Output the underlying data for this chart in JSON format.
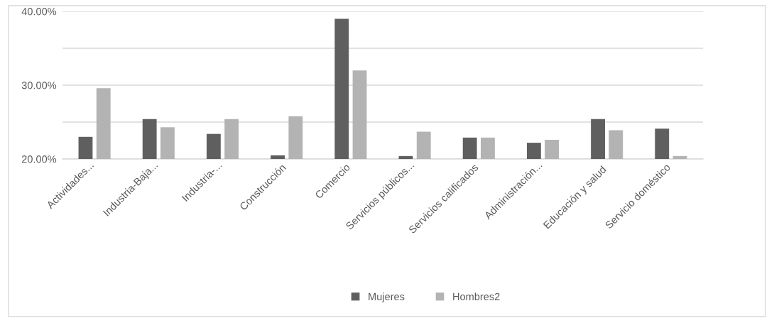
{
  "chart_data": {
    "type": "bar",
    "categories": [
      "Actividades...",
      "Industria-Baja...",
      "Industria-...",
      "Construcción",
      "Comercio",
      "Servicios públicos...",
      "Servicios calificados",
      "Administración...",
      "Educación y salud",
      "Servicio doméstico"
    ],
    "series": [
      {
        "name": "Mujeres",
        "color": "#5f5f5f",
        "values": [
          23.0,
          25.4,
          23.4,
          20.5,
          39.0,
          20.4,
          22.9,
          22.2,
          25.4,
          24.1
        ]
      },
      {
        "name": "Hombres2",
        "color": "#b3b3b3",
        "values": [
          29.6,
          24.3,
          25.4,
          25.8,
          32.0,
          23.7,
          22.9,
          22.6,
          23.9,
          20.4
        ]
      }
    ],
    "ylim": [
      20,
      40
    ],
    "yticks": [
      {
        "value": 20,
        "label": "20.00%"
      },
      {
        "value": 25,
        "label": null
      },
      {
        "value": 30,
        "label": "30.00%"
      },
      {
        "value": 35,
        "label": null
      },
      {
        "value": 40,
        "label": "40.00%"
      }
    ],
    "grid": "y",
    "legend": "bottom"
  }
}
